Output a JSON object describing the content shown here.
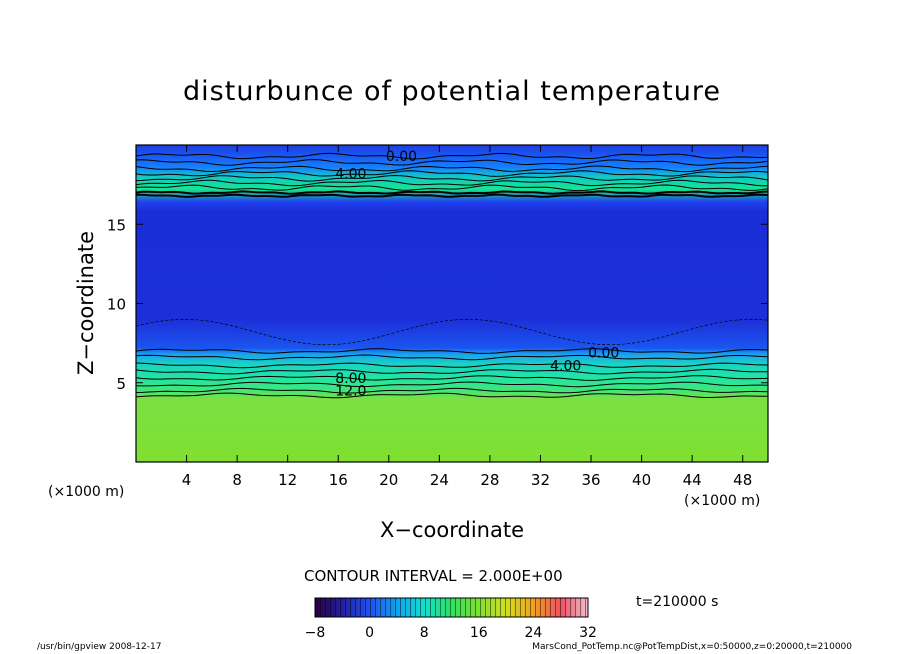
{
  "chart_data": {
    "type": "heatmap",
    "title": "disturbunce of potential temperature",
    "xlabel": "X−coordinate",
    "ylabel": "Z−coordinate",
    "x_unit": "(×1000 m)",
    "y_unit": "(×1000 m)",
    "xlim": [
      0,
      50
    ],
    "ylim": [
      0,
      20
    ],
    "x_ticks": [
      4,
      8,
      12,
      16,
      20,
      24,
      28,
      32,
      36,
      40,
      44,
      48
    ],
    "y_ticks": [
      5,
      10,
      15
    ],
    "contour_labels": [
      {
        "text": "0.00",
        "x": 21,
        "z": 19.3
      },
      {
        "text": "4.00",
        "x": 17,
        "z": 18.2
      },
      {
        "text": "0.00",
        "x": 37,
        "z": 6.9
      },
      {
        "text": "4.00",
        "x": 34,
        "z": 6.1
      },
      {
        "text": "8.00",
        "x": 17,
        "z": 5.3
      },
      {
        "text": "12.0",
        "x": 17,
        "z": 4.5
      }
    ],
    "contour_interval_text": "CONTOUR INTERVAL = 2.000E+00",
    "colorbar": {
      "min": -8,
      "max": 32,
      "ticks": [
        "−8",
        "0",
        "8",
        "16",
        "24",
        "32"
      ]
    },
    "time_label": "t=210000 s",
    "grid": false
  },
  "footer": {
    "left": "/usr/bin/gpview   2008-12-17",
    "right": "MarsCond_PotTemp.nc@PotTempDist,x=0:50000,z=0:20000,t=210000"
  }
}
